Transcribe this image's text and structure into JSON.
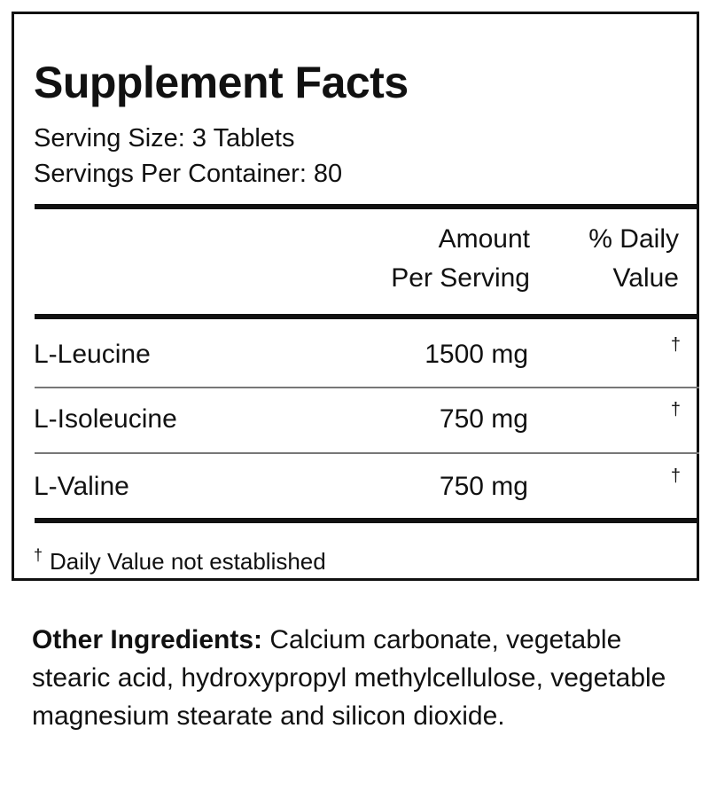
{
  "header": {
    "title": "Supplement Facts"
  },
  "serving": {
    "size": "Serving Size: 3 Tablets",
    "per_container": "Servings Per Container: 80"
  },
  "table": {
    "columns": [
      [
        "Amount",
        "Per Serving"
      ],
      [
        "% Daily",
        "Value"
      ]
    ],
    "rows": [
      [
        "L-Leucine",
        "1500 mg",
        "†"
      ],
      [
        "L-Isoleucine",
        "750 mg",
        "†"
      ],
      [
        "L-Valine",
        "750 mg",
        "†"
      ]
    ]
  },
  "footnote": {
    "symbol": "†",
    "text": "Daily Value not established"
  },
  "other_ingredients": {
    "label": "Other Ingredients:",
    "text": "Calcium carbonate, vegetable stearic acid, hydroxypropyl methylcellulose, vegetable magnesium stearate and silicon dioxide."
  }
}
